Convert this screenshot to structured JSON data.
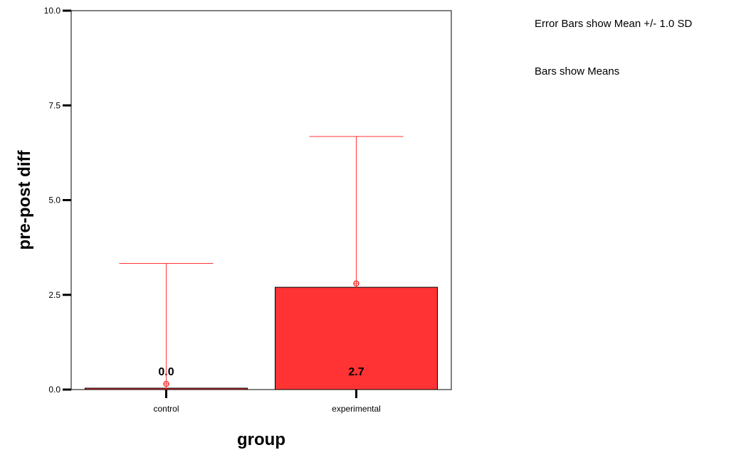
{
  "chart_data": {
    "type": "bar",
    "categories": [
      "control",
      "experimental"
    ],
    "values": [
      0.0,
      2.7
    ],
    "data_labels": [
      "0.0",
      "2.7"
    ],
    "error_bars": {
      "kind": "Mean +/- 1.0 SD",
      "upper": [
        3.33,
        6.68
      ],
      "markers": [
        0.15,
        2.8
      ]
    },
    "xlabel": "group",
    "ylabel": "pre-post diff",
    "ylim": [
      0,
      10
    ],
    "yticks": [
      "0.0",
      "2.5",
      "5.0",
      "7.5",
      "10.0"
    ],
    "ytick_values": [
      0,
      2.5,
      5,
      7.5,
      10
    ],
    "grid": false,
    "legend": "none",
    "notes": [
      "Error Bars show Mean +/- 1.0 SD",
      "Bars show Means"
    ],
    "colors": {
      "bar": "#ff3333",
      "error": "#ff3333",
      "axis": "#000000"
    }
  }
}
